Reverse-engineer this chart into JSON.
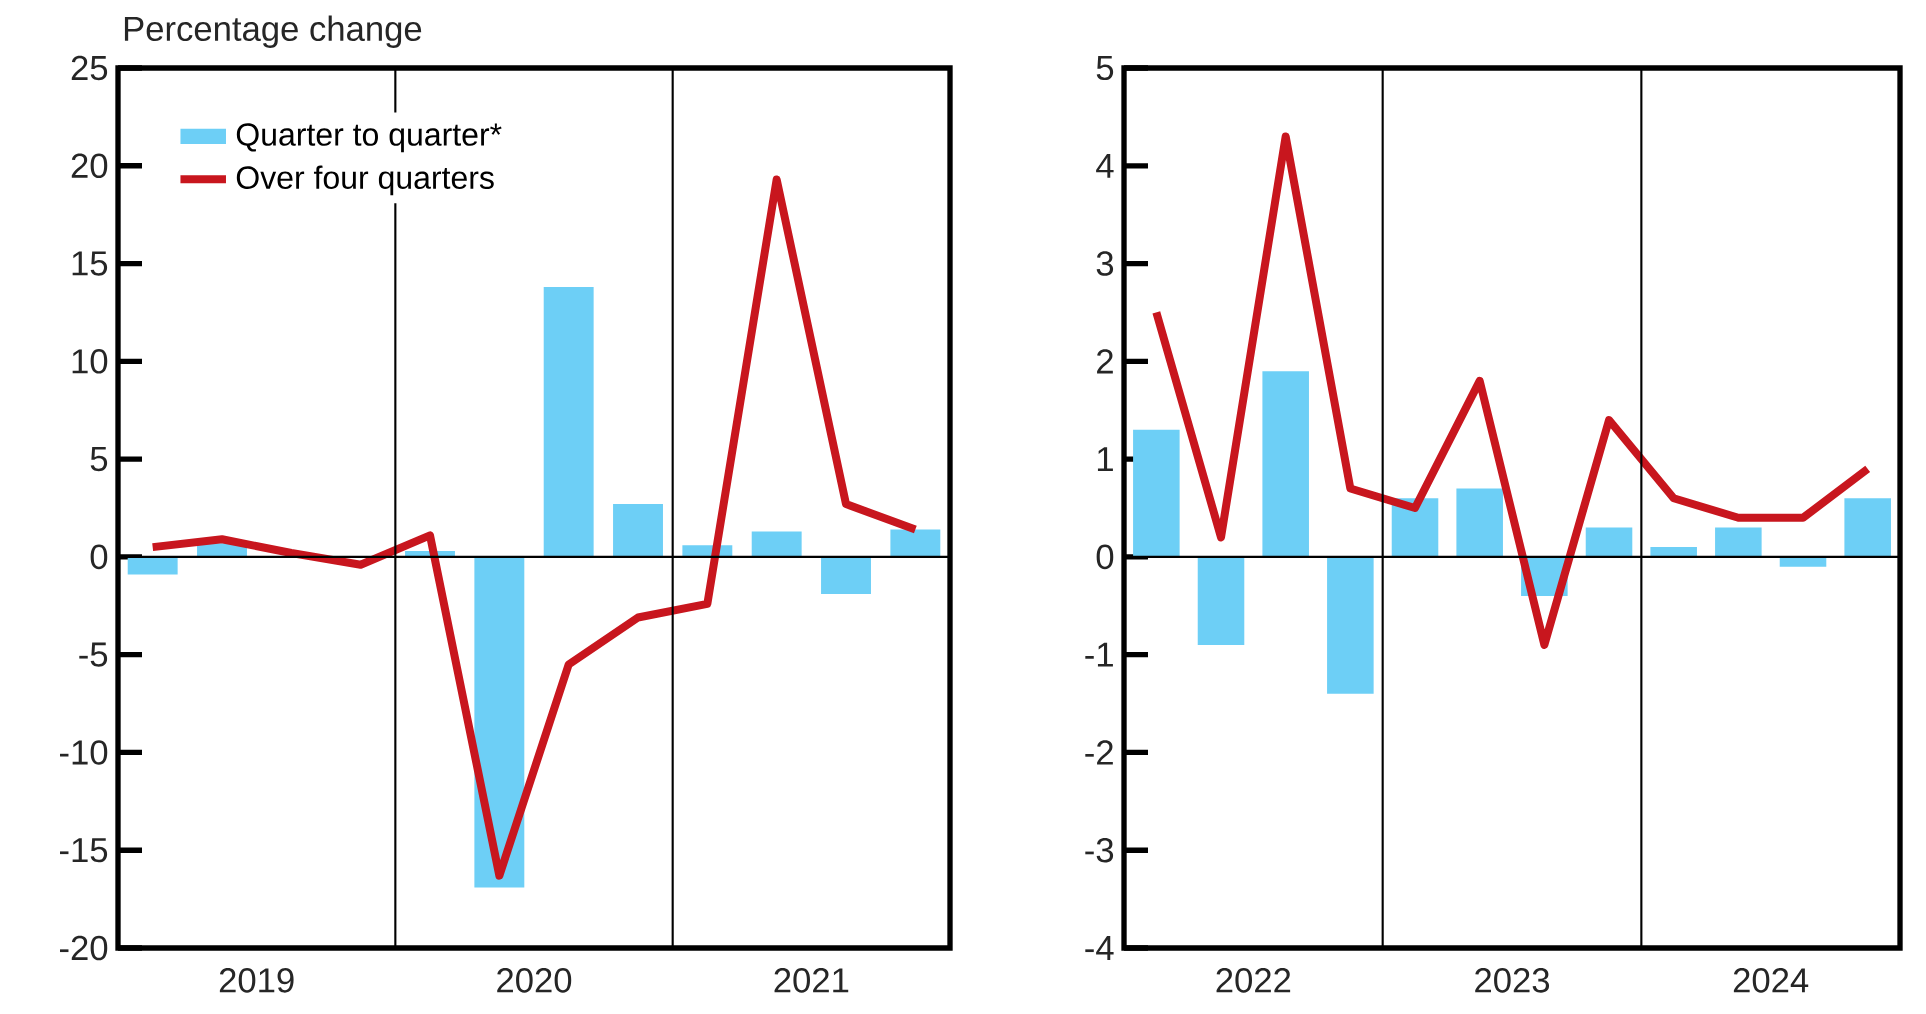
{
  "chart_data": [
    {
      "type": "bar",
      "ylabel": "Percentage change",
      "x": [
        2019.125,
        2019.375,
        2019.625,
        2019.875,
        2020.125,
        2020.375,
        2020.625,
        2020.875,
        2021.125,
        2021.375,
        2021.625,
        2021.875
      ],
      "series": [
        {
          "name": "Quarter to quarter*",
          "color": "#6dcff6",
          "values": [
            -0.9,
            0.7,
            null,
            null,
            0.3,
            -16.9,
            13.8,
            2.7,
            0.6,
            1.3,
            -1.9,
            1.4
          ]
        },
        {
          "name": "Over four quarters",
          "type": "line",
          "color": "#c8161e",
          "values": [
            0.5,
            0.9,
            0.2,
            -0.4,
            1.1,
            -16.3,
            -5.5,
            -3.1,
            -2.4,
            19.3,
            2.7,
            1.4
          ]
        }
      ],
      "xlim": [
        2019,
        2022
      ],
      "xticks": [
        {
          "value": 2019.5,
          "label": "2019"
        },
        {
          "value": 2020.5,
          "label": "2020"
        },
        {
          "value": 2021.5,
          "label": "2021"
        }
      ],
      "ylim": [
        -20,
        25
      ],
      "yticks": [
        -20,
        -15,
        -10,
        -5,
        0,
        5,
        10,
        15,
        20,
        25
      ],
      "ref_lines": [
        {
          "axis": "x",
          "value": 2020,
          "color": "#000000"
        },
        {
          "axis": "x",
          "value": 2021,
          "color": "#000000"
        },
        {
          "axis": "y",
          "value": 0,
          "color": "#000000"
        }
      ],
      "legend": "top left"
    },
    {
      "type": "bar",
      "x": [
        2022.125,
        2022.375,
        2022.625,
        2022.875,
        2023.125,
        2023.375,
        2023.625,
        2023.875,
        2024.125,
        2024.375,
        2024.625,
        2024.875
      ],
      "series": [
        {
          "color": "#6dcff6",
          "values": [
            1.3,
            -0.9,
            1.9,
            -1.4,
            0.6,
            0.7,
            -0.4,
            0.3,
            0.1,
            0.3,
            -0.1,
            0.6
          ]
        },
        {
          "type": "line",
          "color": "#c8161e",
          "values": [
            2.5,
            0.2,
            4.3,
            0.7,
            0.5,
            1.8,
            -0.9,
            1.4,
            0.6,
            0.4,
            0.4,
            0.9
          ]
        }
      ],
      "xlim": [
        2022,
        2025
      ],
      "xticks": [
        {
          "value": 2022.5,
          "label": "2022"
        },
        {
          "value": 2023.5,
          "label": "2023"
        },
        {
          "value": 2024.5,
          "label": "2024"
        }
      ],
      "ylim": [
        -4,
        5
      ],
      "yticks": [
        -4,
        -3,
        -2,
        -1,
        0,
        1,
        2,
        3,
        4,
        5
      ],
      "ref_lines": [
        {
          "axis": "x",
          "value": 2023,
          "color": "#000000"
        },
        {
          "axis": "x",
          "value": 2024,
          "color": "#000000"
        },
        {
          "axis": "y",
          "value": 0,
          "color": "#000000"
        }
      ],
      "legend": false
    }
  ]
}
